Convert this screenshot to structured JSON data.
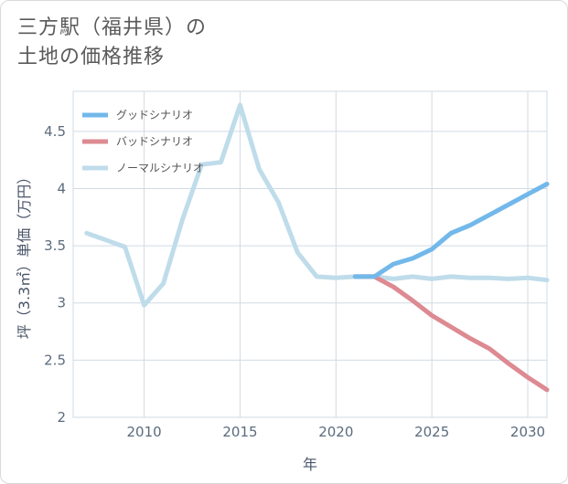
{
  "title_lines": [
    "三方駅（福井県）の",
    "土地の価格推移"
  ],
  "chart_data": {
    "type": "line",
    "xlabel": "年",
    "ylabel": "坪（3.3㎡）単価（万円）",
    "xlim": [
      2006.3,
      2031
    ],
    "ylim": [
      2,
      4.85
    ],
    "x_ticks": [
      2010,
      2015,
      2020,
      2025,
      2030
    ],
    "y_ticks": [
      2,
      2.5,
      3,
      3.5,
      4,
      4.5
    ],
    "y_tick_labels": [
      "2",
      "2.5",
      "3",
      "3.5",
      "4",
      "4.5"
    ],
    "grid": true,
    "legend_position": "top-left",
    "series": [
      {
        "name": "グッドシナリオ",
        "color": "#72b8ea",
        "x": [
          2021,
          2022,
          2023,
          2024,
          2025,
          2026,
          2027,
          2028,
          2029,
          2030,
          2031
        ],
        "y": [
          3.23,
          3.23,
          3.34,
          3.39,
          3.47,
          3.61,
          3.68,
          3.77,
          3.86,
          3.95,
          4.04
        ]
      },
      {
        "name": "バッドシナリオ",
        "color": "#dd8a92",
        "x": [
          2021,
          2022,
          2023,
          2024,
          2025,
          2026,
          2027,
          2028,
          2029,
          2030,
          2031
        ],
        "y": [
          3.23,
          3.23,
          3.14,
          3.02,
          2.89,
          2.79,
          2.69,
          2.6,
          2.47,
          2.35,
          2.24
        ]
      },
      {
        "name": "ノーマルシナリオ",
        "color": "#bfdcea",
        "x": [
          2007,
          2008,
          2009,
          2010,
          2011,
          2012,
          2013,
          2014,
          2015,
          2016,
          2017,
          2018,
          2019,
          2020,
          2021,
          2022,
          2023,
          2024,
          2025,
          2026,
          2027,
          2028,
          2029,
          2030,
          2031
        ],
        "y": [
          3.61,
          3.55,
          3.49,
          2.98,
          3.17,
          3.73,
          4.21,
          4.23,
          4.73,
          4.17,
          3.88,
          3.44,
          3.23,
          3.22,
          3.23,
          3.23,
          3.21,
          3.23,
          3.21,
          3.23,
          3.22,
          3.22,
          3.21,
          3.22,
          3.2
        ]
      }
    ]
  }
}
